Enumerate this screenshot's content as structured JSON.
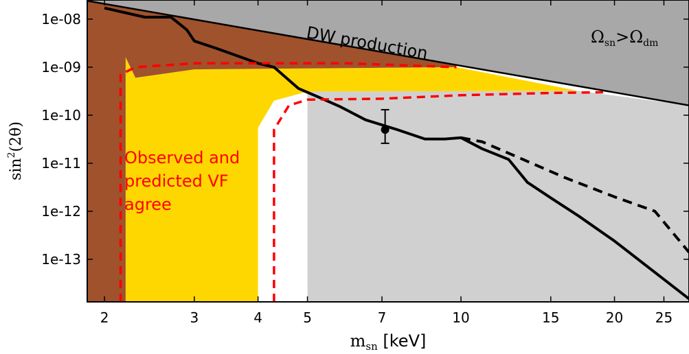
{
  "chart_data": {
    "type": "area",
    "xlabel_main": "m",
    "xlabel_sub": "sn",
    "xlabel_unit": " [keV]",
    "ylabel_main": "sin",
    "ylabel_sup": "2",
    "ylabel_arg": "(2θ)",
    "x_scale": "log",
    "y_scale": "log",
    "xlim": [
      1.85,
      28
    ],
    "ylim": [
      1.3e-14,
      2.5e-08
    ],
    "x_ticks": [
      {
        "value": 2,
        "label": "2"
      },
      {
        "value": 3,
        "label": "3"
      },
      {
        "value": 4,
        "label": "4"
      },
      {
        "value": 5,
        "label": "5"
      },
      {
        "value": 7,
        "label": "7"
      },
      {
        "value": 10,
        "label": "10"
      },
      {
        "value": 15,
        "label": "15"
      },
      {
        "value": 20,
        "label": "20"
      },
      {
        "value": 25,
        "label": "25"
      }
    ],
    "y_ticks": [
      {
        "value": 1e-08,
        "label": "1e-08"
      },
      {
        "value": 1e-09,
        "label": "1e-09"
      },
      {
        "value": 1e-10,
        "label": "1e-10"
      },
      {
        "value": 1e-11,
        "label": "1e-11"
      },
      {
        "value": 1e-12,
        "label": "1e-12"
      },
      {
        "value": 1e-13,
        "label": "1e-13"
      }
    ],
    "regions": [
      {
        "id": "yellow-region",
        "color": "#ffd700",
        "points": [
          [
            2.2,
            1.3e-14
          ],
          [
            2.2,
            1.6e-09
          ],
          [
            2.3,
            6e-10
          ],
          [
            3,
            9e-10
          ],
          [
            9.8,
            1e-09
          ],
          [
            17,
            3.2e-10
          ],
          [
            5,
            3.1e-10
          ],
          [
            4.3,
            2e-10
          ],
          [
            4,
            5.5e-11
          ],
          [
            4,
            1.3e-14
          ]
        ]
      },
      {
        "id": "brown-region",
        "color": "#a0522d",
        "points": [
          [
            1.85,
            1.3e-14
          ],
          [
            2.2,
            1.3e-14
          ],
          [
            2.2,
            1.6e-09
          ],
          [
            2.3,
            6e-10
          ],
          [
            3,
            9e-10
          ],
          [
            9.8,
            1e-09
          ],
          [
            9.8,
            2.4e-08
          ],
          [
            1.85,
            2.4e-08
          ]
        ]
      },
      {
        "id": "grey-light-region",
        "color": "#d0d0d0",
        "points": [
          [
            5,
            3.1e-10
          ],
          [
            17,
            3.2e-10
          ],
          [
            28,
            1.6e-10
          ],
          [
            28,
            1.3e-14
          ],
          [
            5,
            1.3e-14
          ]
        ]
      },
      {
        "id": "grey-dark-region",
        "color": "#a8a8a8",
        "points": [
          [
            1.85,
            2.4e-08
          ],
          [
            28,
            1.6e-10
          ],
          [
            28,
            2.5e-08
          ],
          [
            1.85,
            2.5e-08
          ]
        ]
      }
    ],
    "series": [
      {
        "id": "black-limit",
        "style": "solid",
        "color": "#000000",
        "points": [
          [
            2,
            1.7e-08
          ],
          [
            2.4,
            1.1e-08
          ],
          [
            2.7,
            1.1e-08
          ],
          [
            2.9,
            6e-09
          ],
          [
            3,
            3.5e-09
          ],
          [
            3.3,
            2.5e-09
          ],
          [
            3.6,
            1.8e-09
          ],
          [
            4,
            1.2e-09
          ],
          [
            4.3,
            1e-09
          ],
          [
            4.8,
            3.6e-10
          ],
          [
            5.2,
            2.5e-10
          ],
          [
            5.8,
            1.5e-10
          ],
          [
            6.5,
            8e-11
          ],
          [
            7.5,
            5e-11
          ],
          [
            8.5,
            3.2e-11
          ],
          [
            9.3,
            3.2e-11
          ],
          [
            10,
            3.4e-11
          ],
          [
            11,
            2e-11
          ],
          [
            12.4,
            1.2e-11
          ],
          [
            13.5,
            4e-12
          ],
          [
            15,
            1.9e-12
          ],
          [
            17,
            8e-13
          ],
          [
            20,
            2.4e-13
          ],
          [
            28,
            1.5e-14
          ]
        ]
      },
      {
        "id": "black-dashed",
        "style": "dashed",
        "color": "#000000",
        "points": [
          [
            10,
            3.4e-11
          ],
          [
            11,
            2.8e-11
          ],
          [
            13,
            1.3e-11
          ],
          [
            16,
            5e-12
          ],
          [
            20,
            2e-12
          ],
          [
            24,
            1e-12
          ],
          [
            28,
            1.4e-13
          ]
        ]
      },
      {
        "id": "red-dashed-left",
        "style": "dashed",
        "color": "#ff0000",
        "points": [
          [
            2.15,
            1.3e-14
          ],
          [
            2.15,
            7e-10
          ],
          [
            2.3,
            1e-09
          ],
          [
            3,
            1.2e-09
          ],
          [
            6,
            1.2e-09
          ],
          [
            9.8,
            1e-09
          ]
        ]
      },
      {
        "id": "red-dashed-right",
        "style": "dashed",
        "color": "#ff0000",
        "points": [
          [
            4.3,
            1.3e-14
          ],
          [
            4.3,
            5e-11
          ],
          [
            4.6,
            1.6e-10
          ],
          [
            5,
            2.1e-10
          ],
          [
            7,
            2.2e-10
          ],
          [
            10,
            2.6e-10
          ],
          [
            15,
            2.9e-10
          ],
          [
            19,
            3e-10
          ]
        ]
      }
    ],
    "data_point": {
      "x": 7.1,
      "y": 5e-11,
      "y_err_low": 2.6e-11,
      "y_err_high": 1.3e-10
    },
    "annotations": {
      "dw": "DW production",
      "omega_main1": "Ω",
      "omega_sub1": "sn",
      "omega_op": ">",
      "omega_main2": "Ω",
      "omega_sub2": "dm",
      "red_line1": "Observed and",
      "red_line2": "predicted VF",
      "red_line3": "agree"
    }
  }
}
